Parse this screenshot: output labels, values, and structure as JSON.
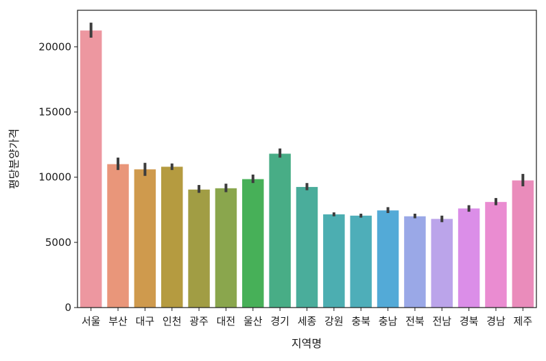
{
  "chart_data": {
    "type": "bar",
    "xlabel": "지역명",
    "ylabel": "평당분양가격",
    "ylim": [
      0,
      22800
    ],
    "yticks": [
      0,
      5000,
      10000,
      15000,
      20000
    ],
    "grid": false,
    "legend": "none",
    "categories": [
      "서울",
      "부산",
      "대구",
      "인천",
      "광주",
      "대전",
      "울산",
      "경기",
      "세종",
      "강원",
      "충북",
      "충남",
      "전북",
      "전남",
      "경북",
      "경남",
      "제주"
    ],
    "values": [
      21250,
      11000,
      10600,
      10800,
      9050,
      9150,
      9850,
      11800,
      9250,
      7150,
      7050,
      7450,
      7000,
      6800,
      7600,
      8100,
      9750
    ],
    "error_low": [
      20700,
      10550,
      10100,
      10550,
      8800,
      8850,
      9550,
      11500,
      9000,
      7000,
      6900,
      7250,
      6850,
      6550,
      7350,
      7850,
      9300
    ],
    "error_high": [
      21850,
      11500,
      11100,
      11050,
      9400,
      9500,
      10200,
      12200,
      9550,
      7300,
      7200,
      7700,
      7200,
      7050,
      7850,
      8400,
      10250
    ],
    "colors": [
      "#ed97a0",
      "#e9967a",
      "#cf9a4d",
      "#b59b40",
      "#a19d44",
      "#8aa64d",
      "#47b058",
      "#48ad86",
      "#4aad9b",
      "#4caeb1",
      "#4eaeb9",
      "#53aad7",
      "#9aa8e7",
      "#bba4ea",
      "#db8ee8",
      "#ea8cd1",
      "#ea8cbb"
    ]
  }
}
